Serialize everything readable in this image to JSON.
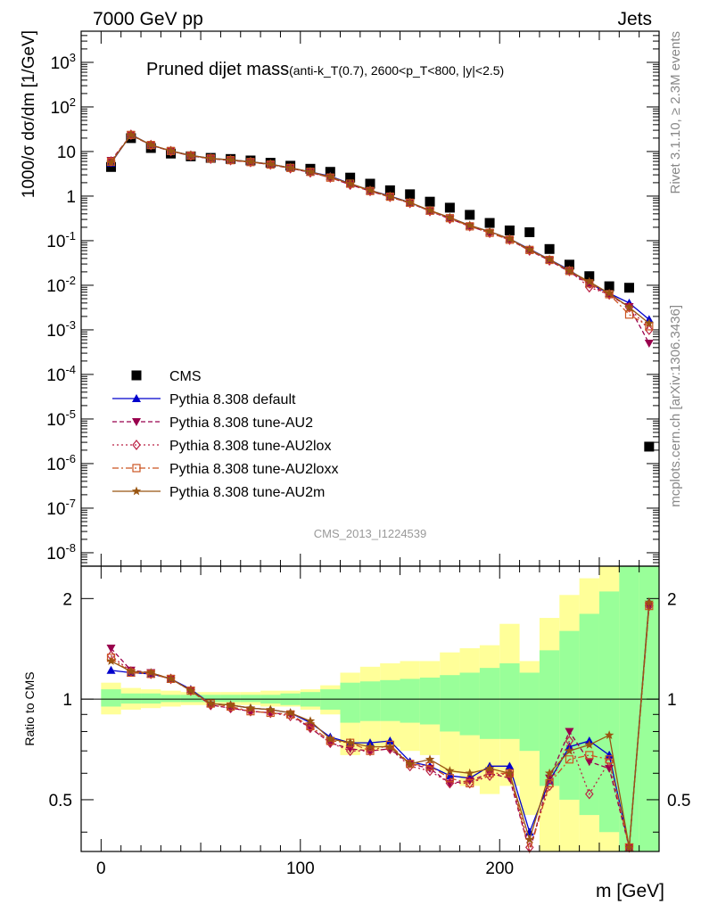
{
  "header": {
    "left": "7000 GeV pp",
    "right": "Jets"
  },
  "side": {
    "rivet": "Rivet 3.1.10, ≥ 2.3M events",
    "mcplots": "mcplots.cern.ch [arXiv:1306.3436]"
  },
  "chart_data": [
    {
      "type": "scatter",
      "title_main": "Pruned dijet mass",
      "title_sub": "(anti-k_T(0.7), 2600<p_T<800, |y|<2.5)",
      "analysis_id": "CMS_2013_I1224539",
      "ylabel": "1000/σ dσ/dm [1/GeV]",
      "xlabel": "",
      "yscale": "log",
      "xlim": [
        -10,
        280
      ],
      "ylim": [
        5e-09,
        5000
      ],
      "grid": false,
      "legend_position": "lower-left",
      "x": [
        5,
        15,
        25,
        35,
        45,
        55,
        65,
        75,
        85,
        95,
        105,
        115,
        125,
        135,
        145,
        155,
        165,
        175,
        185,
        195,
        205,
        215,
        225,
        235,
        245,
        255,
        265,
        275
      ],
      "series": [
        {
          "name": "CMS",
          "color": "#000000",
          "marker": "square",
          "line": "none",
          "values": [
            4.5,
            20,
            12,
            9,
            7.8,
            7.2,
            6.8,
            6.3,
            5.6,
            4.8,
            4.1,
            3.5,
            2.6,
            1.9,
            1.35,
            1.1,
            0.75,
            0.55,
            0.38,
            0.25,
            0.17,
            0.155,
            0.065,
            0.029,
            0.016,
            0.0095,
            0.0088,
            2.4e-06
          ]
        },
        {
          "name": "Pythia 8.308 default",
          "color": "#0000cc",
          "marker": "triangle-up",
          "line": "solid",
          "values": [
            5.5,
            24,
            14,
            10.3,
            8.2,
            7.0,
            6.5,
            5.9,
            5.2,
            4.3,
            3.5,
            2.8,
            1.9,
            1.35,
            1.0,
            0.72,
            0.47,
            0.33,
            0.22,
            0.16,
            0.11,
            0.065,
            0.038,
            0.022,
            0.011,
            0.0066,
            0.004,
            0.0017
          ]
        },
        {
          "name": "Pythia 8.308 tune-AU2",
          "color": "#99004d",
          "marker": "triangle-down",
          "line": "dashed",
          "values": [
            6.3,
            23.5,
            13.8,
            10.2,
            8.0,
            6.9,
            6.3,
            5.8,
            5.1,
            4.2,
            3.4,
            2.6,
            1.8,
            1.3,
            0.95,
            0.7,
            0.46,
            0.31,
            0.21,
            0.15,
            0.105,
            0.06,
            0.036,
            0.02,
            0.0105,
            0.006,
            0.0033,
            0.0005
          ]
        },
        {
          "name": "Pythia 8.308 tune-AU2lox",
          "color": "#bb2244",
          "marker": "diamond-open",
          "line": "dotted",
          "values": [
            6.0,
            23.8,
            14.0,
            10.2,
            8.1,
            6.9,
            6.4,
            5.8,
            5.1,
            4.2,
            3.4,
            2.6,
            1.8,
            1.3,
            0.96,
            0.7,
            0.46,
            0.31,
            0.21,
            0.15,
            0.105,
            0.06,
            0.036,
            0.021,
            0.009,
            0.0062,
            0.0032,
            0.001
          ]
        },
        {
          "name": "Pythia 8.308 tune-AU2loxx",
          "color": "#cc5522",
          "marker": "square-open",
          "line": "dashdot",
          "values": [
            5.9,
            23.6,
            14.0,
            10.3,
            8.1,
            7.0,
            6.4,
            5.8,
            5.1,
            4.3,
            3.5,
            2.6,
            1.9,
            1.3,
            0.97,
            0.71,
            0.47,
            0.32,
            0.21,
            0.15,
            0.105,
            0.062,
            0.037,
            0.021,
            0.011,
            0.0063,
            0.0022,
            0.0012
          ]
        },
        {
          "name": "Pythia 8.308 tune-AU2m",
          "color": "#995511",
          "marker": "star",
          "line": "solid",
          "values": [
            5.7,
            23.7,
            14.1,
            10.3,
            8.2,
            7.0,
            6.5,
            5.9,
            5.2,
            4.3,
            3.5,
            2.7,
            1.9,
            1.35,
            0.98,
            0.72,
            0.48,
            0.33,
            0.22,
            0.16,
            0.11,
            0.063,
            0.038,
            0.021,
            0.012,
            0.0066,
            0.0032,
            0.0014
          ]
        }
      ]
    },
    {
      "type": "line",
      "ylabel": "Ratio to CMS",
      "xlabel": "m [GeV]",
      "xlim": [
        -10,
        280
      ],
      "ylim": [
        0.35,
        2.5
      ],
      "grid": false,
      "x_ticks": [
        "0",
        "100",
        "200"
      ],
      "y_ticks": [
        "0.5",
        "1",
        "2"
      ],
      "bands": {
        "bin_edges": [
          0,
          10,
          20,
          30,
          40,
          50,
          60,
          70,
          80,
          90,
          100,
          110,
          120,
          130,
          140,
          150,
          160,
          170,
          180,
          190,
          200,
          210,
          220,
          230,
          240,
          250,
          260,
          270,
          280
        ],
        "yellow": {
          "color": "#ffff99",
          "lo": [
            0.9,
            0.93,
            0.94,
            0.95,
            0.96,
            0.96,
            0.96,
            0.96,
            0.95,
            0.95,
            0.93,
            0.9,
            0.68,
            0.7,
            0.72,
            0.7,
            0.68,
            0.6,
            0.55,
            0.52,
            0.55,
            0.45,
            0.35,
            0.35,
            0.35,
            0.35,
            0.35,
            0.35
          ],
          "hi": [
            1.12,
            1.08,
            1.07,
            1.06,
            1.05,
            1.05,
            1.05,
            1.05,
            1.06,
            1.06,
            1.07,
            1.1,
            1.2,
            1.25,
            1.28,
            1.3,
            1.3,
            1.38,
            1.42,
            1.45,
            1.68,
            1.3,
            1.75,
            2.05,
            2.3,
            2.5,
            2.5,
            2.5
          ]
        },
        "green": {
          "color": "#99ff99",
          "lo": [
            0.95,
            0.97,
            0.97,
            0.98,
            0.98,
            0.98,
            0.98,
            0.98,
            0.97,
            0.96,
            0.95,
            0.93,
            0.85,
            0.86,
            0.86,
            0.85,
            0.84,
            0.8,
            0.78,
            0.76,
            0.76,
            0.7,
            0.55,
            0.5,
            0.45,
            0.4,
            0.35,
            0.35
          ],
          "hi": [
            1.07,
            1.04,
            1.04,
            1.03,
            1.03,
            1.03,
            1.03,
            1.03,
            1.03,
            1.04,
            1.05,
            1.07,
            1.12,
            1.13,
            1.14,
            1.15,
            1.16,
            1.18,
            1.2,
            1.24,
            1.28,
            1.2,
            1.4,
            1.6,
            1.8,
            2.1,
            2.5,
            2.5
          ]
        }
      },
      "series": [
        {
          "name": "Pythia 8.308 default",
          "color": "#0000cc",
          "values": [
            1.22,
            1.2,
            1.19,
            1.15,
            1.07,
            0.97,
            0.96,
            0.94,
            0.93,
            0.91,
            0.85,
            0.77,
            0.74,
            0.74,
            0.75,
            0.65,
            0.63,
            0.59,
            0.58,
            0.63,
            0.63,
            0.4,
            0.57,
            0.72,
            0.75,
            0.68,
            0.36,
            1.95
          ]
        },
        {
          "name": "Pythia 8.308 tune-AU2",
          "color": "#99004d",
          "values": [
            1.42,
            1.22,
            1.2,
            1.15,
            1.06,
            0.96,
            0.94,
            0.92,
            0.91,
            0.9,
            0.82,
            0.74,
            0.71,
            0.7,
            0.71,
            0.64,
            0.62,
            0.56,
            0.57,
            0.6,
            0.58,
            0.35,
            0.58,
            0.8,
            0.65,
            0.62,
            0.36,
            1.9
          ]
        },
        {
          "name": "Pythia 8.308 tune-AU2lox",
          "color": "#bb2244",
          "values": [
            1.35,
            1.21,
            1.19,
            1.15,
            1.06,
            0.96,
            0.94,
            0.92,
            0.91,
            0.89,
            0.82,
            0.74,
            0.7,
            0.7,
            0.71,
            0.63,
            0.61,
            0.56,
            0.56,
            0.59,
            0.6,
            0.36,
            0.55,
            0.75,
            0.52,
            0.65,
            0.36,
            1.9
          ]
        },
        {
          "name": "Pythia 8.308 tune-AU2loxx",
          "color": "#cc5522",
          "values": [
            1.33,
            1.2,
            1.19,
            1.15,
            1.06,
            0.97,
            0.95,
            0.92,
            0.91,
            0.9,
            0.83,
            0.75,
            0.74,
            0.7,
            0.73,
            0.64,
            0.63,
            0.58,
            0.56,
            0.6,
            0.6,
            0.35,
            0.56,
            0.66,
            0.68,
            0.66,
            0.36,
            1.9
          ]
        },
        {
          "name": "Pythia 8.308 tune-AU2m",
          "color": "#995511",
          "values": [
            1.3,
            1.21,
            1.2,
            1.15,
            1.06,
            0.97,
            0.96,
            0.94,
            0.93,
            0.91,
            0.86,
            0.76,
            0.74,
            0.72,
            0.72,
            0.64,
            0.66,
            0.61,
            0.6,
            0.62,
            0.6,
            0.38,
            0.6,
            0.7,
            0.73,
            0.78,
            0.36,
            1.95
          ]
        }
      ]
    }
  ]
}
